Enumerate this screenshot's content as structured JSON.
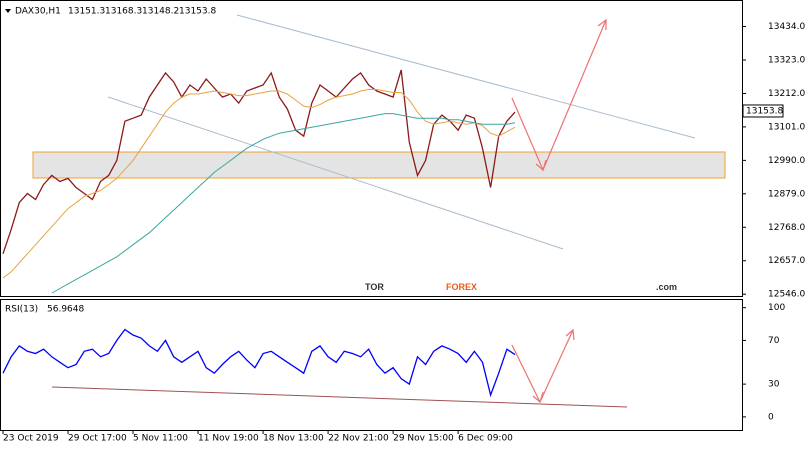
{
  "chart_data": [
    {
      "type": "line",
      "title": "DAX30,H1",
      "ohlc": [
        13151.3,
        13168.3,
        13148.2,
        13153.8
      ],
      "last_price": 13153.8,
      "ylim": [
        12540,
        13522
      ],
      "yticks": [
        {
          "value": 12546,
          "label": "12546.0"
        },
        {
          "value": 12657,
          "label": "12657.0"
        },
        {
          "value": 12768,
          "label": "12768.0"
        },
        {
          "value": 12879,
          "label": "12879.0"
        },
        {
          "value": 12990,
          "label": "12990.0"
        },
        {
          "value": 13101,
          "label": "13101.0"
        },
        {
          "value": 13212,
          "label": "13212.0"
        },
        {
          "value": 13323,
          "label": "13323.0"
        },
        {
          "value": 13434,
          "label": "13434.0"
        }
      ],
      "series": [
        {
          "color": "#8b1a1a",
          "values": [
            12680,
            12760,
            12850,
            12880,
            12860,
            12910,
            12940,
            12920,
            12930,
            12900,
            12880,
            12860,
            12920,
            12940,
            12990,
            13120,
            13130,
            13140,
            13200,
            13240,
            13280,
            13250,
            13200,
            13240,
            13220,
            13260,
            13230,
            13200,
            13210,
            13180,
            13220,
            13230,
            13240,
            13280,
            13200,
            13160,
            13090,
            13070,
            13180,
            13240,
            13220,
            13200,
            13230,
            13260,
            13280,
            13240,
            13220,
            13210,
            13200,
            13290,
            13050,
            12940,
            12990,
            13110,
            13140,
            13120,
            13090,
            13140,
            13130,
            13030,
            12900,
            13070,
            13120,
            13150
          ]
        },
        {
          "color": "#e8a33d",
          "values": [
            12600,
            12620,
            12650,
            12680,
            12710,
            12740,
            12770,
            12800,
            12830,
            12850,
            12870,
            12880,
            12890,
            12910,
            12930,
            12960,
            12990,
            13030,
            13070,
            13110,
            13150,
            13180,
            13200,
            13210,
            13210,
            13215,
            13220,
            13215,
            13210,
            13205,
            13205,
            13210,
            13215,
            13220,
            13220,
            13210,
            13190,
            13170,
            13165,
            13175,
            13190,
            13200,
            13205,
            13210,
            13220,
            13225,
            13225,
            13220,
            13215,
            13215,
            13190,
            13150,
            13120,
            13110,
            13115,
            13120,
            13115,
            13110,
            13115,
            13105,
            13080,
            13070,
            13085,
            13100
          ]
        },
        {
          "color": "#3aa6a0",
          "values": [
            null,
            null,
            null,
            null,
            null,
            null,
            12550,
            12565,
            12580,
            12595,
            12610,
            12625,
            12640,
            12655,
            12670,
            12690,
            12710,
            12730,
            12750,
            12775,
            12800,
            12825,
            12850,
            12875,
            12900,
            12925,
            12950,
            12970,
            12990,
            13010,
            13030,
            13045,
            13060,
            13070,
            13080,
            13085,
            13090,
            13095,
            13100,
            13105,
            13110,
            13115,
            13120,
            13125,
            13130,
            13135,
            13140,
            13145,
            13145,
            13140,
            13135,
            13130,
            13130,
            13130,
            13130,
            13125,
            13125,
            13120,
            13115,
            13110,
            13110,
            13110,
            13110,
            13115
          ]
        }
      ]
    },
    {
      "type": "line",
      "title": "RSI(13)",
      "last_value": 56.9648,
      "ylim": [
        -12,
        107
      ],
      "yticks": [
        0,
        30,
        70,
        100
      ],
      "categories": [
        "23 Oct 2019",
        null,
        null,
        null,
        null,
        null,
        null,
        null,
        "29 Oct 17:00",
        null,
        null,
        null,
        null,
        null,
        null,
        null,
        "5 Nov 11:00",
        null,
        null,
        null,
        null,
        null,
        null,
        null,
        "11 Nov 19:00",
        null,
        null,
        null,
        null,
        null,
        null,
        null,
        "18 Nov 13:00",
        null,
        null,
        null,
        null,
        null,
        null,
        null,
        "22 Nov 21:00",
        null,
        null,
        null,
        null,
        null,
        null,
        null,
        "29 Nov 15:00",
        null,
        null,
        null,
        null,
        null,
        null,
        null,
        "6 Dec 09:00",
        null,
        null,
        null,
        null,
        null,
        null,
        null
      ],
      "series": [
        {
          "color": "#0000ff",
          "values": [
            40,
            55,
            65,
            60,
            58,
            62,
            55,
            50,
            45,
            48,
            60,
            62,
            55,
            58,
            70,
            80,
            75,
            72,
            65,
            60,
            70,
            55,
            50,
            55,
            60,
            45,
            40,
            48,
            55,
            60,
            52,
            45,
            58,
            60,
            55,
            50,
            45,
            40,
            60,
            65,
            55,
            50,
            60,
            58,
            55,
            62,
            48,
            40,
            45,
            35,
            30,
            55,
            48,
            60,
            65,
            62,
            58,
            50,
            60,
            50,
            20,
            40,
            62,
            57
          ]
        }
      ]
    }
  ],
  "watermark": {
    "part1": "TOR",
    "part2": "FOREX",
    "part3": ".com"
  }
}
